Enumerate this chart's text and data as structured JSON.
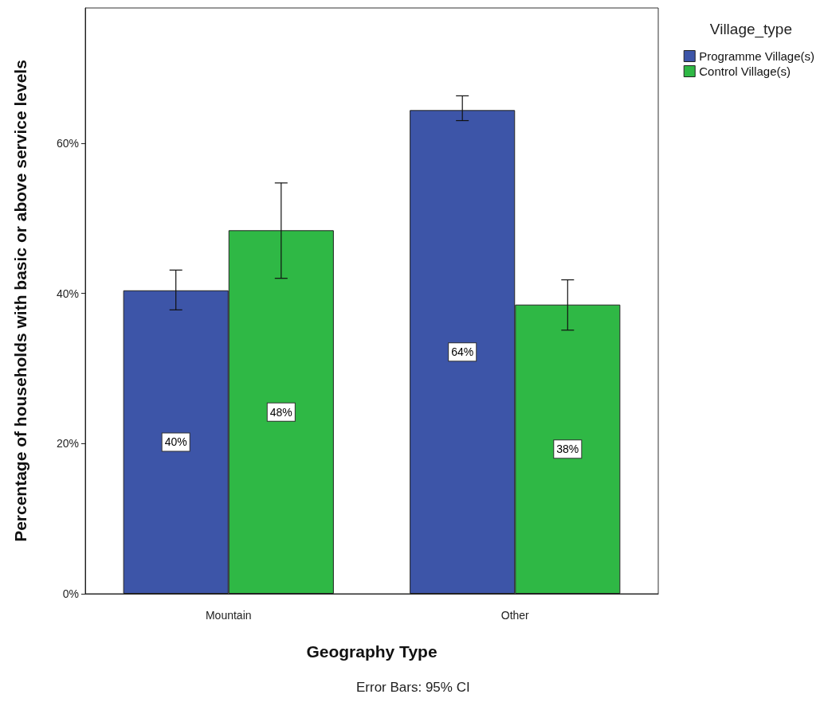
{
  "chart_data": {
    "type": "bar",
    "xlabel": "Geography Type",
    "ylabel": "Percentage of households with basic or above service levels",
    "legend_title": "Village_type",
    "categories": [
      "Mountain",
      "Other"
    ],
    "series": [
      {
        "name": "Programme Village(s)",
        "color": "#3d55a8",
        "values": [
          40.4,
          64.4
        ],
        "errors": [
          [
            37.8,
            43.1
          ],
          [
            63.0,
            66.3
          ]
        ],
        "value_labels": [
          "40%",
          "64%"
        ]
      },
      {
        "name": "Control Village(s)",
        "color": "#2fb845",
        "values": [
          48.4,
          38.5
        ],
        "errors": [
          [
            42.0,
            54.7
          ],
          [
            35.1,
            41.8
          ]
        ],
        "value_labels": [
          "48%",
          "38%"
        ]
      }
    ],
    "ylim": [
      0,
      78
    ],
    "yticks": [
      {
        "value": 0,
        "label": "0%"
      },
      {
        "value": 20,
        "label": "20%"
      },
      {
        "value": 40,
        "label": "40%"
      },
      {
        "value": 60,
        "label": "60%"
      }
    ],
    "grid": false,
    "legend": "top right",
    "annotations": [
      "Error Bars: 95% CI"
    ]
  }
}
